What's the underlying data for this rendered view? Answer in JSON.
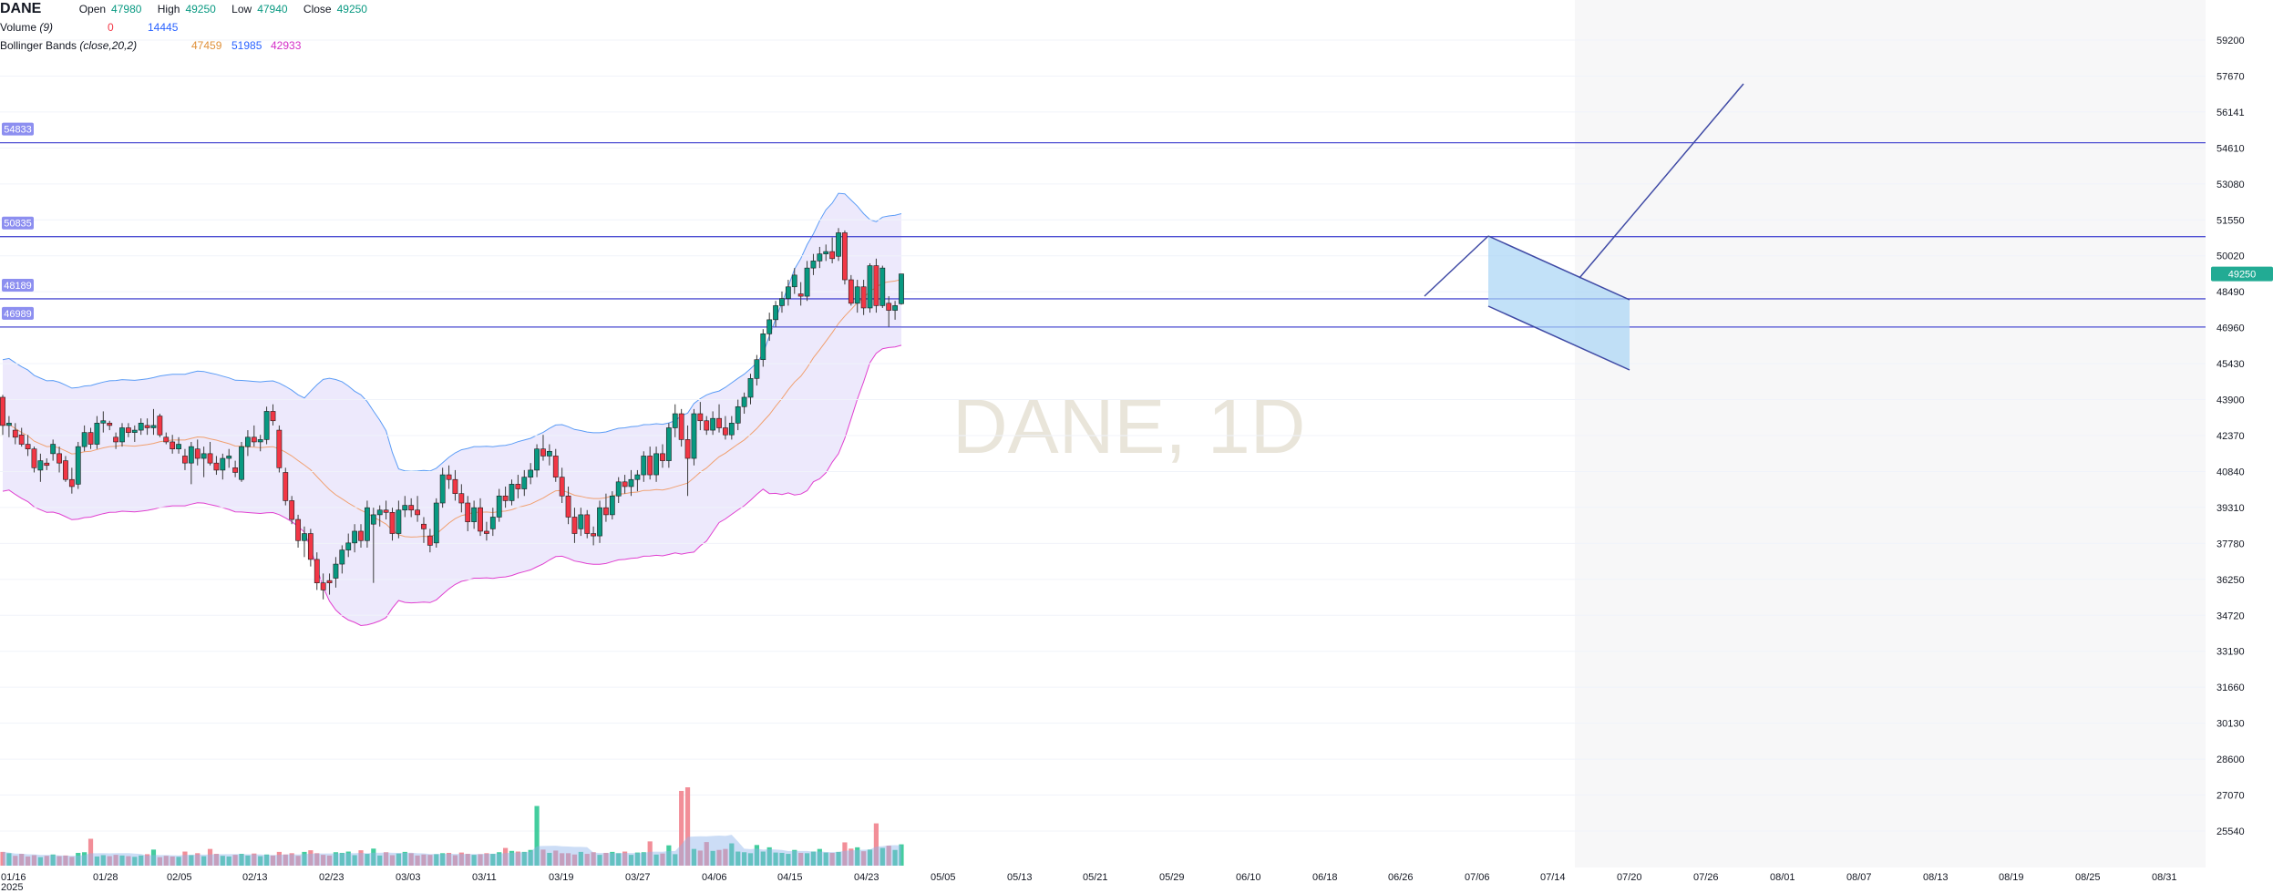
{
  "header": {
    "symbol": "DANE",
    "open_label": "Open",
    "open_value": "47980",
    "high_label": "High",
    "high_value": "49250",
    "low_label": "Low",
    "low_value": "47940",
    "close_label": "Close",
    "close_value": "49250",
    "volume_label": "Volume",
    "volume_param": "(9)",
    "volume_val1": "0",
    "volume_val2": "14445",
    "bb_label": "Bollinger Bands",
    "bb_param": "(close,20,2)",
    "bb_basis": "47459",
    "bb_upper": "51985",
    "bb_lower": "42933"
  },
  "watermark": "DANE, 1D",
  "colors": {
    "up": "#089981",
    "down": "#f23645",
    "bb_upper": "#5b9cf6",
    "bb_lower": "#e040d0",
    "bb_basis": "#f0a070",
    "bb_fill": "#e8e3fb",
    "hline": "#4e4fd3",
    "price_badge": "#22ab94",
    "line_tool": "#3f4aa5"
  },
  "chart_data": {
    "type": "candlestick",
    "y_ticks": [
      "59200",
      "57670",
      "56141",
      "54610",
      "53080",
      "51550",
      "50020",
      "48490",
      "46960",
      "45430",
      "43900",
      "42370",
      "40840",
      "39310",
      "37780",
      "36250",
      "34720",
      "33190",
      "31660",
      "30130",
      "28600",
      "27070",
      "25540"
    ],
    "ylim": [
      25540,
      59200
    ],
    "x_ticks": [
      "01/16",
      "01/28",
      "02/05",
      "02/13",
      "02/23",
      "03/03",
      "03/11",
      "03/19",
      "03/27",
      "04/06",
      "04/15",
      "04/23",
      "05/05",
      "05/13",
      "05/21",
      "05/29",
      "06/10",
      "06/18",
      "06/26",
      "07/06",
      "07/14",
      "07/20",
      "07/26",
      "08/01",
      "08/07",
      "08/13",
      "08/19",
      "08/25",
      "08/31"
    ],
    "x_year": "2025",
    "hlines": [
      {
        "value": 54833,
        "label": "54833"
      },
      {
        "value": 50835,
        "label": "50835"
      },
      {
        "value": 48189,
        "label": "48189"
      },
      {
        "value": 46989,
        "label": "46989"
      }
    ],
    "last_price": "49250",
    "candles": [
      [
        44000,
        44100,
        42400,
        42800
      ],
      [
        42800,
        43200,
        42300,
        42900
      ],
      [
        42600,
        42900,
        42000,
        42300
      ],
      [
        42400,
        42700,
        41900,
        42000
      ],
      [
        42000,
        42400,
        41500,
        41800
      ],
      [
        41800,
        41900,
        40800,
        41000
      ],
      [
        40900,
        41600,
        40400,
        41300
      ],
      [
        41200,
        41400,
        40900,
        41100
      ],
      [
        41600,
        42200,
        41300,
        42000
      ],
      [
        41600,
        41900,
        40800,
        41200
      ],
      [
        41300,
        41500,
        40400,
        40500
      ],
      [
        40500,
        41000,
        39900,
        40200
      ],
      [
        40300,
        42100,
        40100,
        41900
      ],
      [
        41900,
        42800,
        41700,
        42500
      ],
      [
        42500,
        42700,
        41800,
        42000
      ],
      [
        42000,
        43200,
        41800,
        42900
      ],
      [
        42900,
        43400,
        42500,
        43000
      ],
      [
        42900,
        43000,
        42600,
        42800
      ],
      [
        42300,
        42500,
        41800,
        42100
      ],
      [
        42100,
        42900,
        41900,
        42700
      ],
      [
        42700,
        42900,
        42300,
        42500
      ],
      [
        42500,
        42800,
        42100,
        42600
      ],
      [
        42600,
        43100,
        42400,
        42900
      ],
      [
        42800,
        43100,
        42400,
        42700
      ],
      [
        42700,
        43500,
        42400,
        42800
      ],
      [
        43200,
        43300,
        42300,
        42400
      ],
      [
        42300,
        42500,
        42000,
        42100
      ],
      [
        42100,
        42400,
        41600,
        41800
      ],
      [
        41800,
        42300,
        41600,
        42000
      ],
      [
        41500,
        41800,
        40900,
        41200
      ],
      [
        41200,
        42100,
        40300,
        41900
      ],
      [
        41800,
        42200,
        41100,
        41400
      ],
      [
        41400,
        41900,
        40600,
        41600
      ],
      [
        41600,
        42100,
        41100,
        41200
      ],
      [
        41200,
        41500,
        40700,
        40900
      ],
      [
        40900,
        41600,
        40500,
        41400
      ],
      [
        41400,
        41800,
        41000,
        41500
      ],
      [
        41000,
        41300,
        40600,
        40800
      ],
      [
        40500,
        42100,
        40400,
        41900
      ],
      [
        41900,
        42600,
        41500,
        42300
      ],
      [
        42300,
        42800,
        41900,
        42100
      ],
      [
        42100,
        42400,
        41700,
        42200
      ],
      [
        42200,
        43600,
        42000,
        43400
      ],
      [
        43400,
        43700,
        42800,
        43000
      ],
      [
        42600,
        42800,
        40800,
        41000
      ],
      [
        40800,
        41000,
        39400,
        39600
      ],
      [
        39600,
        39800,
        38600,
        38800
      ],
      [
        38800,
        39000,
        37600,
        37900
      ],
      [
        37900,
        38500,
        37200,
        38200
      ],
      [
        38200,
        38400,
        36800,
        37100
      ],
      [
        37100,
        37400,
        35800,
        36100
      ],
      [
        36100,
        36500,
        35400,
        35800
      ],
      [
        36200,
        36500,
        35600,
        36100
      ],
      [
        36300,
        37200,
        35900,
        36900
      ],
      [
        36900,
        37700,
        36500,
        37500
      ],
      [
        37500,
        38200,
        37200,
        37800
      ],
      [
        37800,
        38600,
        37400,
        38300
      ],
      [
        38300,
        38600,
        37600,
        37900
      ],
      [
        37900,
        39600,
        37600,
        39300
      ],
      [
        38600,
        39300,
        36100,
        39000
      ],
      [
        39000,
        39400,
        38500,
        39200
      ],
      [
        39200,
        39600,
        38800,
        39100
      ],
      [
        39100,
        39300,
        37900,
        38200
      ],
      [
        38200,
        39600,
        38000,
        39200
      ],
      [
        39200,
        39800,
        38900,
        39400
      ],
      [
        39400,
        39700,
        38900,
        39200
      ],
      [
        39200,
        39800,
        38700,
        39000
      ],
      [
        38600,
        38900,
        37800,
        38400
      ],
      [
        38100,
        38400,
        37400,
        37700
      ],
      [
        37800,
        39700,
        37600,
        39500
      ],
      [
        39500,
        41000,
        39300,
        40700
      ],
      [
        40700,
        41100,
        40100,
        40500
      ],
      [
        40500,
        40900,
        39600,
        39900
      ],
      [
        39900,
        40300,
        39100,
        39500
      ],
      [
        39500,
        39800,
        38300,
        38700
      ],
      [
        38700,
        39600,
        38400,
        39300
      ],
      [
        39300,
        39700,
        38100,
        38300
      ],
      [
        38300,
        38700,
        37900,
        38200
      ],
      [
        38400,
        39300,
        38100,
        38900
      ],
      [
        38900,
        40100,
        38700,
        39800
      ],
      [
        39800,
        40200,
        39300,
        39600
      ],
      [
        39600,
        40500,
        39400,
        40300
      ],
      [
        40300,
        40700,
        39700,
        40100
      ],
      [
        40100,
        40900,
        39800,
        40600
      ],
      [
        40600,
        41200,
        40300,
        40900
      ],
      [
        40900,
        42000,
        40600,
        41800
      ],
      [
        41800,
        42400,
        41300,
        41500
      ],
      [
        41500,
        42000,
        41100,
        41700
      ],
      [
        41500,
        41800,
        40400,
        40600
      ],
      [
        40600,
        41000,
        39500,
        39800
      ],
      [
        39800,
        40200,
        38600,
        38900
      ],
      [
        38900,
        39300,
        37800,
        38200
      ],
      [
        38400,
        39300,
        38100,
        39000
      ],
      [
        39000,
        39200,
        38000,
        38200
      ],
      [
        38200,
        38500,
        37700,
        38100
      ],
      [
        38100,
        39600,
        37800,
        39300
      ],
      [
        39300,
        39900,
        38700,
        39000
      ],
      [
        39000,
        40000,
        38800,
        39800
      ],
      [
        39800,
        40600,
        39500,
        40400
      ],
      [
        40400,
        40700,
        39900,
        40200
      ],
      [
        40200,
        40900,
        39800,
        40500
      ],
      [
        40500,
        40900,
        40000,
        40700
      ],
      [
        40700,
        41700,
        40400,
        41500
      ],
      [
        41500,
        41900,
        40500,
        40700
      ],
      [
        40700,
        41900,
        40400,
        41600
      ],
      [
        41600,
        42000,
        41000,
        41300
      ],
      [
        41300,
        42900,
        41000,
        42700
      ],
      [
        42700,
        43700,
        42300,
        43300
      ],
      [
        43300,
        43500,
        41900,
        42200
      ],
      [
        42200,
        42800,
        39800,
        41400
      ],
      [
        41400,
        43500,
        41100,
        43300
      ],
      [
        43300,
        43800,
        42600,
        43000
      ],
      [
        43000,
        43200,
        42400,
        42600
      ],
      [
        42600,
        43400,
        42400,
        43100
      ],
      [
        43100,
        43700,
        42500,
        42700
      ],
      [
        42700,
        43200,
        42200,
        42400
      ],
      [
        42400,
        43200,
        42200,
        42900
      ],
      [
        42900,
        43900,
        42600,
        43600
      ],
      [
        43600,
        44200,
        43300,
        44000
      ],
      [
        44000,
        45000,
        43700,
        44800
      ],
      [
        44800,
        45800,
        44500,
        45600
      ],
      [
        45600,
        46900,
        45300,
        46700
      ],
      [
        46700,
        47600,
        46400,
        47300
      ],
      [
        47300,
        48100,
        47000,
        47900
      ],
      [
        47900,
        48500,
        47600,
        48200
      ],
      [
        48200,
        49000,
        47900,
        48700
      ],
      [
        48700,
        49500,
        48400,
        49200
      ],
      [
        48400,
        48900,
        47900,
        48300
      ],
      [
        48300,
        49800,
        48100,
        49500
      ],
      [
        49500,
        50100,
        49200,
        49800
      ],
      [
        49800,
        50400,
        49500,
        50100
      ],
      [
        50100,
        50500,
        49800,
        50200
      ],
      [
        50200,
        50800,
        49700,
        49900
      ],
      [
        50000,
        51200,
        49800,
        51000
      ],
      [
        51000,
        51100,
        48800,
        49000
      ],
      [
        49000,
        49200,
        47900,
        48000
      ],
      [
        48000,
        49000,
        47600,
        48700
      ],
      [
        48700,
        49000,
        47500,
        47800
      ],
      [
        47800,
        49700,
        47600,
        49600
      ],
      [
        49600,
        49900,
        47600,
        47900
      ],
      [
        47900,
        49600,
        47800,
        49500
      ],
      [
        48000,
        48300,
        47000,
        47700
      ],
      [
        47700,
        48100,
        47300,
        47900
      ],
      [
        47980,
        49250,
        47940,
        49250
      ]
    ],
    "volumes": [
      4200,
      3800,
      3000,
      3600,
      2800,
      3200,
      2600,
      3000,
      3400,
      2900,
      3100,
      2700,
      3900,
      4100,
      8200,
      2800,
      3200,
      2900,
      3300,
      3100,
      2900,
      2700,
      3100,
      3500,
      4900,
      2600,
      3000,
      2800,
      2700,
      4300,
      3200,
      3800,
      2900,
      5100,
      3600,
      3000,
      2800,
      3300,
      3600,
      3100,
      3700,
      2900,
      3400,
      3100,
      4200,
      3400,
      3800,
      3000,
      4200,
      4700,
      3800,
      3300,
      3100,
      4100,
      3900,
      4300,
      3200,
      4700,
      3600,
      5200,
      3100,
      4100,
      3200,
      3700,
      4200,
      3800,
      3100,
      3400,
      3300,
      3500,
      3800,
      3900,
      3200,
      4000,
      3600,
      3300,
      3500,
      3800,
      3600,
      4100,
      5400,
      4500,
      4300,
      4200,
      4800,
      18200,
      4900,
      3900,
      4600,
      3800,
      3800,
      3400,
      4200,
      3600,
      4100,
      3300,
      3900,
      4200,
      3800,
      4300,
      3300,
      4000,
      4100,
      7400,
      3400,
      3700,
      6200,
      3500,
      22800,
      23900,
      5100,
      4600,
      7200,
      4500,
      4800,
      5100,
      6800,
      4300,
      4100,
      3800,
      6300,
      4300,
      5600,
      4000,
      3900,
      3600,
      4800,
      3900,
      3800,
      4300,
      5100,
      4000,
      3900,
      4200,
      7100,
      5200,
      5600,
      4400,
      4900,
      12900,
      5400,
      6100,
      4800,
      6500
    ],
    "volume_max": 23900
  }
}
